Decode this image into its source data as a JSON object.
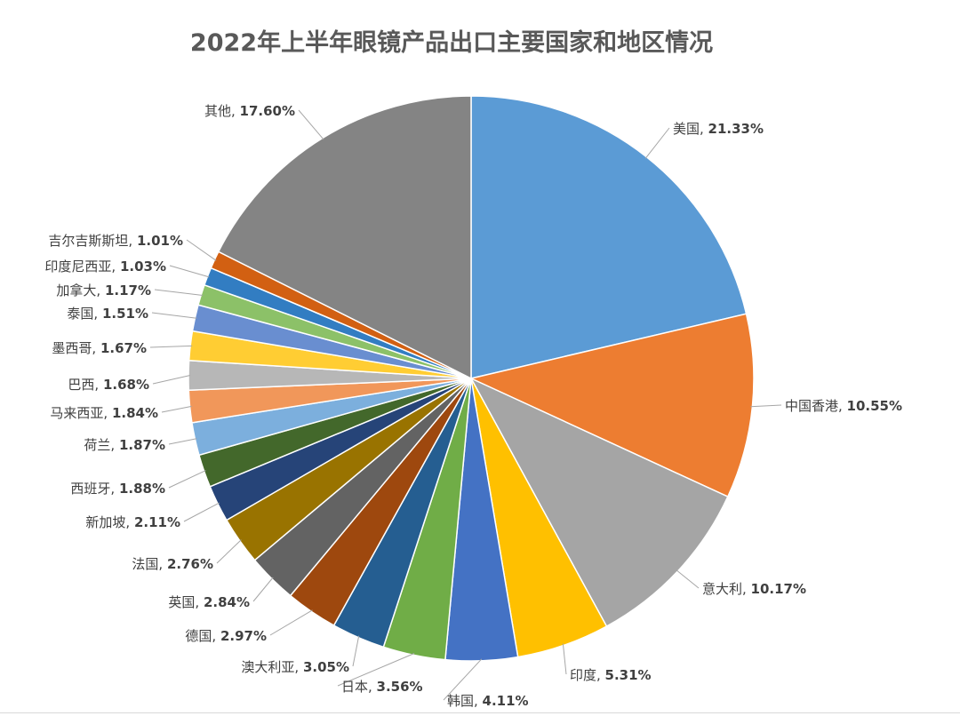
{
  "chart_data": {
    "type": "pie",
    "title": "2022年上半年眼镜产品出口主要国家和地区情况",
    "start_angle_deg": 0,
    "direction": "clockwise",
    "slices": [
      {
        "label": "美国",
        "value": 21.33,
        "display": "21.33%",
        "color": "#5B9BD5"
      },
      {
        "label": "中国香港",
        "value": 10.55,
        "display": "10.55%",
        "color": "#ED7D31"
      },
      {
        "label": "意大利",
        "value": 10.17,
        "display": "10.17%",
        "color": "#A5A5A5"
      },
      {
        "label": "印度",
        "value": 5.31,
        "display": "5.31%",
        "color": "#FFC000"
      },
      {
        "label": "韩国",
        "value": 4.11,
        "display": "4.11%",
        "color": "#4472C4"
      },
      {
        "label": "日本",
        "value": 3.56,
        "display": "3.56%",
        "color": "#70AD47"
      },
      {
        "label": "澳大利亚",
        "value": 3.05,
        "display": "3.05%",
        "color": "#255E91"
      },
      {
        "label": "德国",
        "value": 2.97,
        "display": "2.97%",
        "color": "#9E480E"
      },
      {
        "label": "英国",
        "value": 2.84,
        "display": "2.84%",
        "color": "#636363"
      },
      {
        "label": "法国",
        "value": 2.76,
        "display": "2.76%",
        "color": "#997300"
      },
      {
        "label": "新加坡",
        "value": 2.11,
        "display": "2.11%",
        "color": "#264478"
      },
      {
        "label": "西班牙",
        "value": 1.88,
        "display": "1.88%",
        "color": "#43682B"
      },
      {
        "label": "荷兰",
        "value": 1.87,
        "display": "1.87%",
        "color": "#7CAFDD"
      },
      {
        "label": "马来西亚",
        "value": 1.84,
        "display": "1.84%",
        "color": "#F1975A"
      },
      {
        "label": "巴西",
        "value": 1.68,
        "display": "1.68%",
        "color": "#B7B7B7"
      },
      {
        "label": "墨西哥",
        "value": 1.67,
        "display": "1.67%",
        "color": "#FFCD33"
      },
      {
        "label": "泰国",
        "value": 1.51,
        "display": "1.51%",
        "color": "#698ED0"
      },
      {
        "label": "加拿大",
        "value": 1.17,
        "display": "1.17%",
        "color": "#8CC168"
      },
      {
        "label": "印度尼西亚",
        "value": 1.03,
        "display": "1.03%",
        "color": "#327DC2"
      },
      {
        "label": "吉尔吉斯斯坦",
        "value": 1.01,
        "display": "1.01%",
        "color": "#D26012"
      },
      {
        "label": "其他",
        "value": 17.6,
        "display": "17.60%",
        "color": "#848484"
      }
    ]
  }
}
